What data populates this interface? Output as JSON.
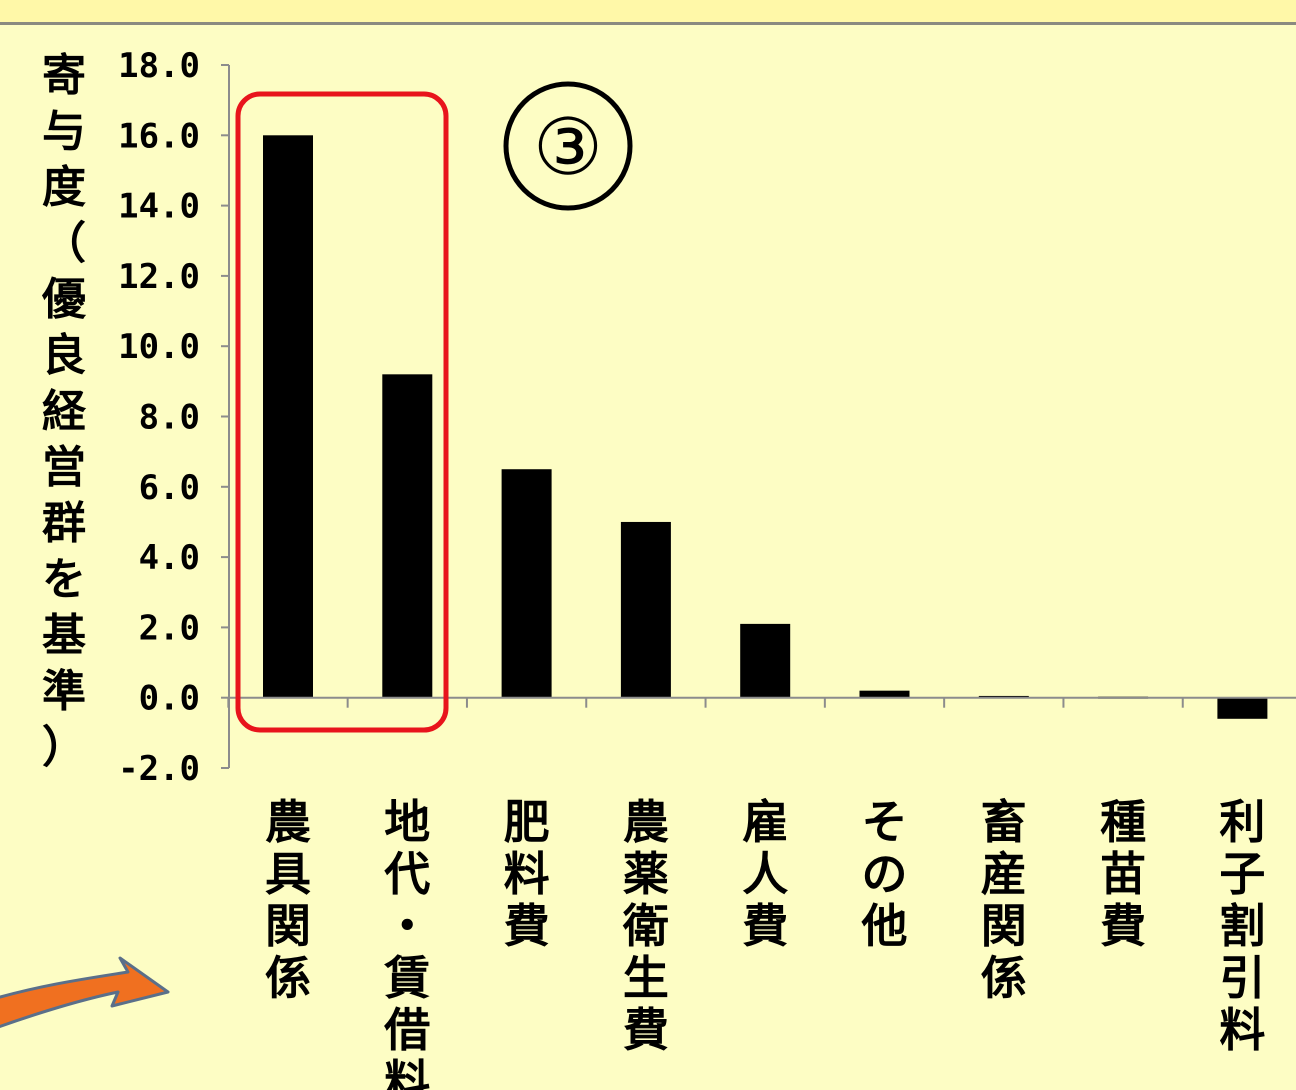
{
  "chart_data": {
    "type": "bar",
    "ylabel": "寄与度（優良経営群を基準）",
    "ylim": [
      -2.0,
      18.0
    ],
    "yticks": [
      "-2.0",
      "0.0",
      "2.0",
      "4.0",
      "6.0",
      "8.0",
      "10.0",
      "12.0",
      "14.0",
      "16.0",
      "18.0"
    ],
    "categories": [
      "農具関係",
      "地代・賃借料",
      "肥料費",
      "農薬衛生費",
      "雇人費",
      "その他",
      "畜産関係",
      "種苗費",
      "利子割引料"
    ],
    "values": [
      16.0,
      9.2,
      6.5,
      5.0,
      2.1,
      0.2,
      0.05,
      0.03,
      -0.6
    ],
    "bar_color": "#000000",
    "highlight": {
      "categories": [
        "農具関係",
        "地代・賃借料"
      ],
      "color": "#e8141c"
    },
    "annotation": "③",
    "grid": false
  },
  "colors": {
    "background": "#fdfdc4",
    "highlight_box": "#e8141c",
    "arrow": "#f07020"
  }
}
